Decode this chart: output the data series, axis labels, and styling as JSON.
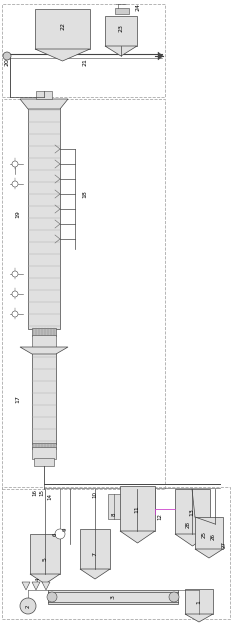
{
  "bg_color": "#ffffff",
  "border_color": "#aaaaaa",
  "line_color": "#444444",
  "component_color": "#dddddd",
  "highlight_color": "#cc44cc",
  "fig_w": 2.35,
  "fig_h": 6.24,
  "dpi": 100
}
